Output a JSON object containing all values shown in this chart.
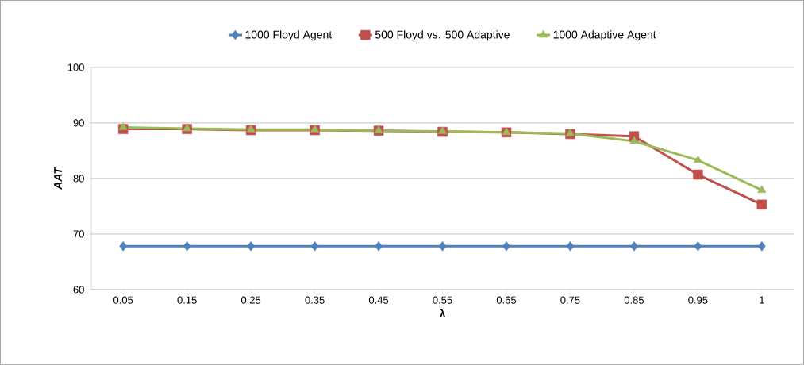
{
  "chart_data": {
    "type": "line",
    "xlabel": "λ",
    "ylabel": "AAT",
    "categories": [
      "0.05",
      "0.15",
      "0.25",
      "0.35",
      "0.45",
      "0.55",
      "0.65",
      "0.75",
      "0.85",
      "0.95",
      "1"
    ],
    "series": [
      {
        "name": "1000 Floyd Agent",
        "color": "#4f81bd",
        "marker": "diamond",
        "values": [
          67.8,
          67.8,
          67.8,
          67.8,
          67.8,
          67.8,
          67.8,
          67.8,
          67.8,
          67.8,
          67.8
        ]
      },
      {
        "name": "500 Floyd  vs. 500 Adaptive",
        "color": "#c0504d",
        "marker": "square",
        "values": [
          88.9,
          88.9,
          88.7,
          88.7,
          88.6,
          88.4,
          88.3,
          88.0,
          87.6,
          80.7,
          75.3
        ]
      },
      {
        "name": "1000 Adaptive Agent",
        "color": "#9bbb59",
        "marker": "triangle",
        "values": [
          89.2,
          89.0,
          88.8,
          88.8,
          88.6,
          88.5,
          88.3,
          88.1,
          86.7,
          83.3,
          77.9
        ]
      }
    ],
    "ylim": [
      60,
      100
    ],
    "yticks": [
      60,
      70,
      80,
      90,
      100
    ],
    "grid": "y",
    "legend": "top",
    "line_style": "solid"
  }
}
